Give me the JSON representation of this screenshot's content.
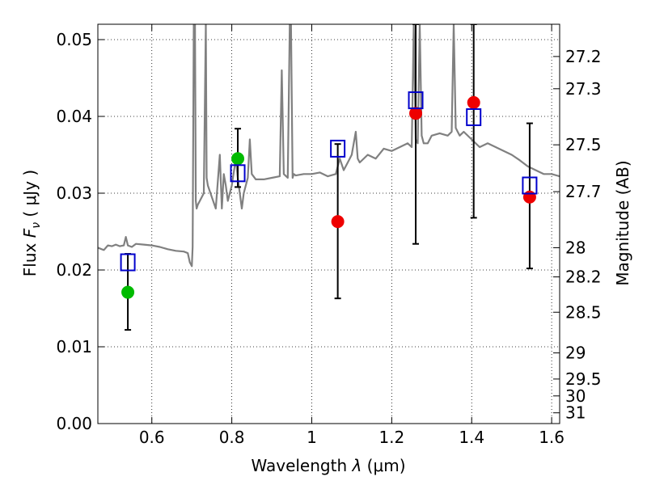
{
  "chart_data": {
    "type": "scatter",
    "xlabel": "Wavelength  λ (μm)",
    "ylabel": "Flux  F_ν  ( μJy )",
    "ylabel_parts": {
      "prefix": "Flux  ",
      "var": "F",
      "sub": "ν",
      "unit": "  ( μJy )"
    },
    "xlabel_parts": {
      "prefix": "Wavelength  ",
      "var": "λ",
      "unit": " (μm)"
    },
    "y2label": "Magnitude (AB)",
    "xlim": [
      0.465,
      1.62
    ],
    "ylim": [
      0.0,
      0.052
    ],
    "grid": true,
    "x_ticks": [
      0.6,
      0.8,
      1.0,
      1.2,
      1.4,
      1.6
    ],
    "x_tick_labels": [
      "0.6",
      "0.8",
      "1",
      "1.2",
      "1.4",
      "1.6"
    ],
    "y_ticks": [
      0.0,
      0.01,
      0.02,
      0.03,
      0.04,
      0.05
    ],
    "y_tick_labels": [
      "0.00",
      "0.01",
      "0.02",
      "0.03",
      "0.04",
      "0.05"
    ],
    "mag_ticks": [
      {
        "label": "27.2",
        "flux": 0.0478
      },
      {
        "label": "27.3",
        "flux": 0.0436
      },
      {
        "label": "27.5",
        "flux": 0.0363
      },
      {
        "label": "27.7",
        "flux": 0.0302
      },
      {
        "label": "28",
        "flux": 0.0229
      },
      {
        "label": "28.2",
        "flux": 0.0191
      },
      {
        "label": "28.5",
        "flux": 0.0145
      },
      {
        "label": "29",
        "flux": 0.0092
      },
      {
        "label": "29.5",
        "flux": 0.0058
      },
      {
        "label": "30",
        "flux": 0.0036
      },
      {
        "label": "31",
        "flux": 0.0014
      }
    ],
    "spectrum": {
      "name": "model spectrum",
      "color": "#808080",
      "x": [
        0.465,
        0.48,
        0.49,
        0.5,
        0.51,
        0.52,
        0.53,
        0.535,
        0.54,
        0.55,
        0.56,
        0.58,
        0.6,
        0.62,
        0.64,
        0.66,
        0.68,
        0.69,
        0.695,
        0.7,
        0.702,
        0.705,
        0.708,
        0.71,
        0.712,
        0.715,
        0.72,
        0.73,
        0.735,
        0.737,
        0.74,
        0.75,
        0.76,
        0.77,
        0.775,
        0.78,
        0.785,
        0.79,
        0.8,
        0.81,
        0.815,
        0.82,
        0.825,
        0.83,
        0.84,
        0.845,
        0.85,
        0.86,
        0.88,
        0.9,
        0.92,
        0.925,
        0.93,
        0.94,
        0.945,
        0.948,
        0.952,
        0.955,
        0.96,
        0.98,
        1.0,
        1.02,
        1.04,
        1.06,
        1.07,
        1.08,
        1.09,
        1.1,
        1.11,
        1.115,
        1.12,
        1.14,
        1.16,
        1.18,
        1.2,
        1.22,
        1.24,
        1.25,
        1.255,
        1.26,
        1.265,
        1.27,
        1.275,
        1.28,
        1.29,
        1.3,
        1.32,
        1.34,
        1.35,
        1.355,
        1.36,
        1.365,
        1.37,
        1.38,
        1.4,
        1.42,
        1.44,
        1.46,
        1.48,
        1.5,
        1.52,
        1.54,
        1.56,
        1.58,
        1.6,
        1.62
      ],
      "y": [
        0.0229,
        0.0226,
        0.0232,
        0.0231,
        0.0233,
        0.0231,
        0.0232,
        0.0243,
        0.0232,
        0.023,
        0.0234,
        0.0233,
        0.0232,
        0.023,
        0.0227,
        0.0225,
        0.0224,
        0.0222,
        0.021,
        0.0205,
        0.023,
        0.052,
        0.052,
        0.029,
        0.028,
        0.0285,
        0.029,
        0.03,
        0.052,
        0.032,
        0.031,
        0.0295,
        0.028,
        0.035,
        0.028,
        0.0325,
        0.031,
        0.029,
        0.031,
        0.0345,
        0.032,
        0.03,
        0.028,
        0.03,
        0.032,
        0.037,
        0.0325,
        0.0318,
        0.0318,
        0.032,
        0.0322,
        0.046,
        0.0325,
        0.032,
        0.052,
        0.052,
        0.032,
        0.0325,
        0.0323,
        0.0325,
        0.0325,
        0.0327,
        0.0322,
        0.0325,
        0.0345,
        0.033,
        0.034,
        0.035,
        0.038,
        0.0345,
        0.034,
        0.035,
        0.0345,
        0.0358,
        0.0355,
        0.036,
        0.0365,
        0.036,
        0.052,
        0.037,
        0.0365,
        0.052,
        0.0375,
        0.0365,
        0.0365,
        0.0375,
        0.0378,
        0.0375,
        0.038,
        0.052,
        0.0385,
        0.038,
        0.0375,
        0.038,
        0.037,
        0.036,
        0.0365,
        0.036,
        0.0355,
        0.035,
        0.0343,
        0.0335,
        0.033,
        0.0325,
        0.0325,
        0.0322
      ]
    },
    "markers": [
      {
        "name": "green filled",
        "color": "#00bb00",
        "points": [
          {
            "x": 0.54,
            "y": 0.0171,
            "err_lo": 0.0122,
            "err_hi": 0.0221
          },
          {
            "x": 0.815,
            "y": 0.0345,
            "err_lo": 0.0308,
            "err_hi": 0.0384
          }
        ]
      },
      {
        "name": "red filled",
        "color": "#ee0000",
        "points": [
          {
            "x": 1.065,
            "y": 0.0263,
            "err_lo": 0.0163,
            "err_hi": 0.0364
          },
          {
            "x": 1.26,
            "y": 0.0404,
            "err_lo": 0.0234,
            "err_hi": 0.052
          },
          {
            "x": 1.405,
            "y": 0.0418,
            "err_lo": 0.0268,
            "err_hi": 0.052
          },
          {
            "x": 1.545,
            "y": 0.0295,
            "err_lo": 0.0202,
            "err_hi": 0.0391
          }
        ]
      },
      {
        "name": "blue open squares",
        "color": "#0000cc",
        "points": [
          {
            "x": 0.54,
            "y": 0.021
          },
          {
            "x": 0.815,
            "y": 0.0326
          },
          {
            "x": 1.065,
            "y": 0.0358
          },
          {
            "x": 1.26,
            "y": 0.0421
          },
          {
            "x": 1.405,
            "y": 0.0399
          },
          {
            "x": 1.545,
            "y": 0.031
          }
        ]
      }
    ]
  }
}
